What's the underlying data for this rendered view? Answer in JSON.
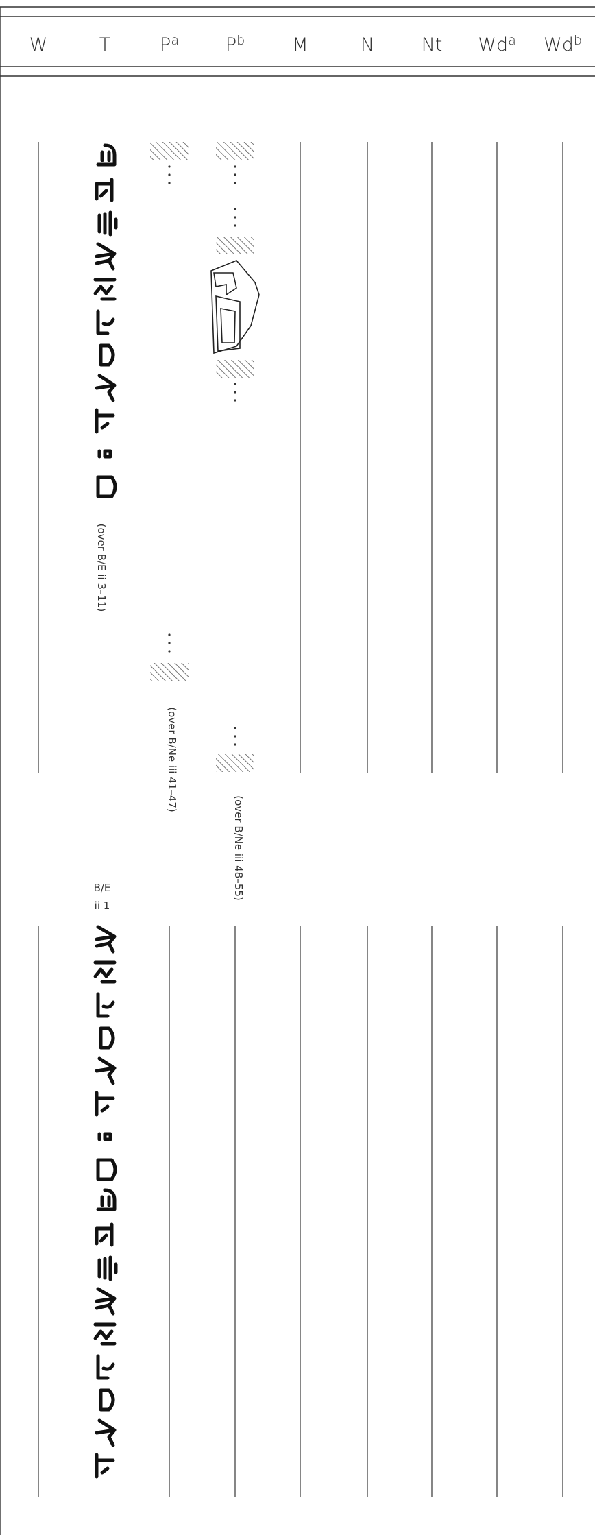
{
  "header": {
    "columns": [
      {
        "label": "W"
      },
      {
        "label": "T"
      },
      {
        "label": "P",
        "sup": "a"
      },
      {
        "label": "P",
        "sup": "b"
      },
      {
        "label": "M"
      },
      {
        "label": "N"
      },
      {
        "label": "Nt"
      },
      {
        "label": "Wd",
        "sup": "a"
      },
      {
        "label": "Wd",
        "sup": "b"
      }
    ]
  },
  "notes": {
    "t": "(over B/E ii 3–11)",
    "pa": "(over B/Ne iii 41–47)",
    "pb": "(over B/Ne iii 48–55)"
  },
  "marker": {
    "line1": "B/E",
    "line2": "ii 1"
  }
}
